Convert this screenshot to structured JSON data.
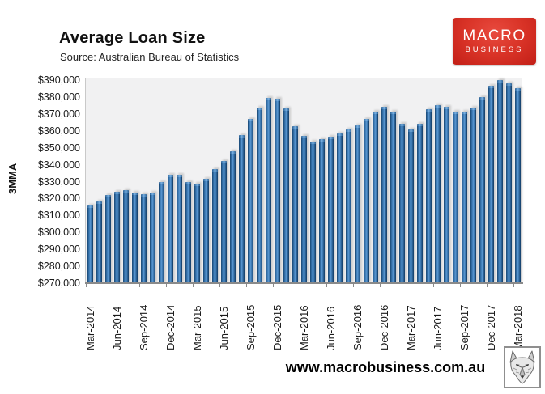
{
  "page": {
    "title": "Average Loan Size",
    "subtitle": "Source: Australian Bureau of Statistics",
    "website": "www.macrobusiness.com.au"
  },
  "logo": {
    "line1": "MACRO",
    "line2": "BUSINESS",
    "bg_color": "#d93327",
    "text_color": "#ffffff"
  },
  "wolf_logo_name": "macrobusiness-wolf",
  "chart_data": {
    "type": "bar",
    "title": "Average Loan Size",
    "subtitle": "Source: Australian Bureau of Statistics",
    "ylabel": "3MMA",
    "xlabel": "",
    "ylim": [
      270000,
      390000
    ],
    "ytick_step": 10000,
    "grid": false,
    "legend": "none",
    "plot_bg": "#f1f1f2",
    "bar_color": "#2e6da4",
    "bar_edge_color": "#1f4e79",
    "ytick_labels": [
      "$390,000",
      "$380,000",
      "$370,000",
      "$360,000",
      "$350,000",
      "$340,000",
      "$330,000",
      "$320,000",
      "$310,000",
      "$300,000",
      "$290,000",
      "$280,000",
      "$270,000"
    ],
    "xtick_labels": [
      "Mar-2014",
      "Jun-2014",
      "Sep-2014",
      "Dec-2014",
      "Mar-2015",
      "Jun-2015",
      "Sep-2015",
      "Dec-2015",
      "Mar-2016",
      "Jun-2016",
      "Sep-2016",
      "Dec-2016",
      "Mar-2017",
      "Jun-2017",
      "Sep-2017",
      "Dec-2017",
      "Mar-2018"
    ],
    "xtick_every": 3,
    "categories": [
      "Mar-2014",
      "Apr-2014",
      "May-2014",
      "Jun-2014",
      "Jul-2014",
      "Aug-2014",
      "Sep-2014",
      "Oct-2014",
      "Nov-2014",
      "Dec-2014",
      "Jan-2015",
      "Feb-2015",
      "Mar-2015",
      "Apr-2015",
      "May-2015",
      "Jun-2015",
      "Jul-2015",
      "Aug-2015",
      "Sep-2015",
      "Oct-2015",
      "Nov-2015",
      "Dec-2015",
      "Jan-2016",
      "Feb-2016",
      "Mar-2016",
      "Apr-2016",
      "May-2016",
      "Jun-2016",
      "Jul-2016",
      "Aug-2016",
      "Sep-2016",
      "Oct-2016",
      "Nov-2016",
      "Dec-2016",
      "Jan-2017",
      "Feb-2017",
      "Mar-2017",
      "Apr-2017",
      "May-2017",
      "Jun-2017",
      "Jul-2017",
      "Aug-2017",
      "Sep-2017",
      "Oct-2017",
      "Nov-2017",
      "Dec-2017",
      "Jan-2018",
      "Feb-2018",
      "Mar-2018"
    ],
    "values": [
      316000,
      318500,
      322000,
      324000,
      325000,
      323500,
      322500,
      323500,
      330000,
      334000,
      334000,
      330000,
      329000,
      331500,
      337500,
      342000,
      348000,
      357500,
      367000,
      374000,
      379500,
      379000,
      373500,
      363000,
      357000,
      353500,
      355000,
      356500,
      358500,
      361000,
      363500,
      367000,
      371500,
      374500,
      371500,
      364000,
      361000,
      364000,
      373000,
      375000,
      374500,
      371500,
      371500,
      374000,
      380000,
      386500,
      390000,
      388000,
      385500
    ]
  }
}
